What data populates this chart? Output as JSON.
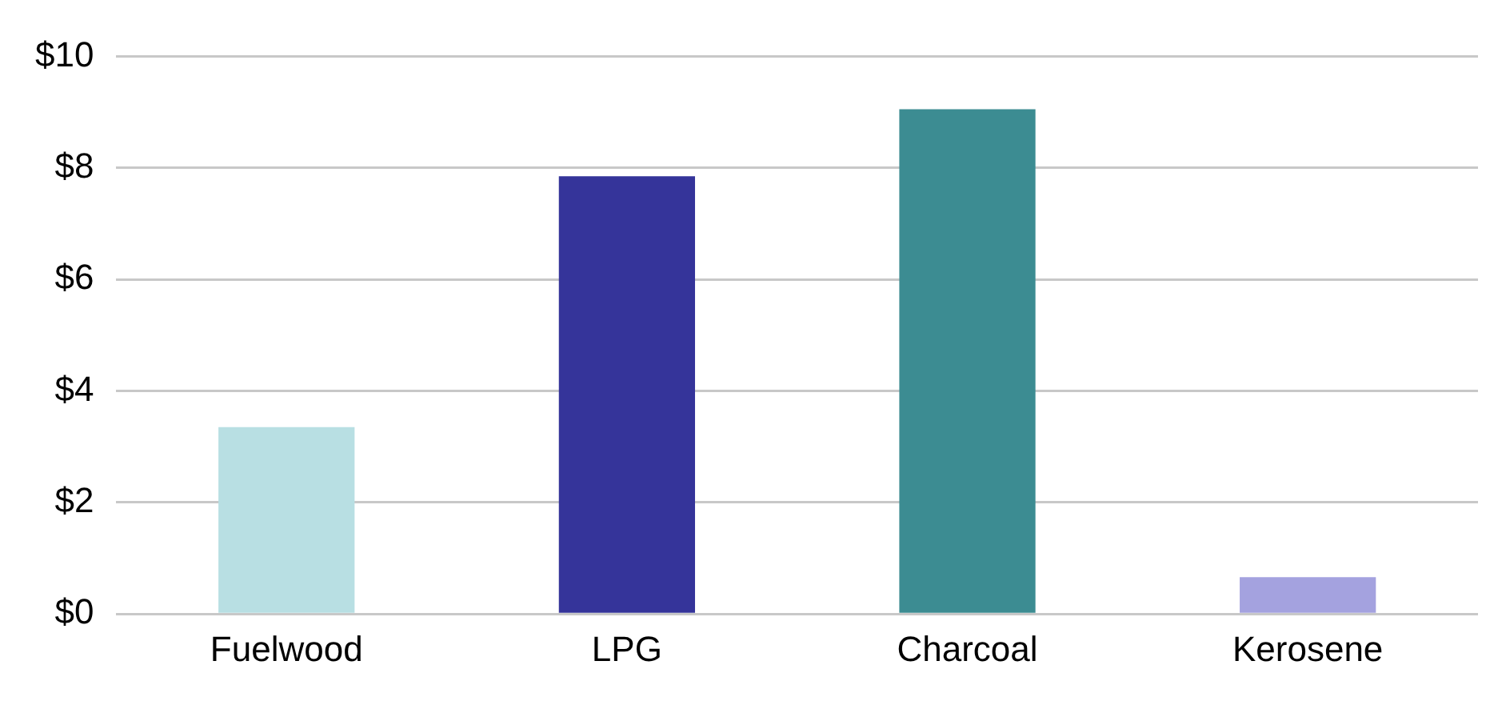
{
  "chart_data": {
    "type": "bar",
    "categories": [
      "Fuelwood",
      "LPG",
      "Charcoal",
      "Kerosene"
    ],
    "values": [
      3.35,
      7.85,
      9.05,
      0.66
    ],
    "colors": [
      "#b8dfe3",
      "#35349a",
      "#3c8c92",
      "#a4a2df"
    ],
    "ylim": [
      0,
      10
    ],
    "yticks": [
      {
        "value": 0,
        "label": "$0"
      },
      {
        "value": 2,
        "label": "$2"
      },
      {
        "value": 4,
        "label": "$4"
      },
      {
        "value": 6,
        "label": "$6"
      },
      {
        "value": 8,
        "label": "$8"
      },
      {
        "value": 10,
        "label": "$10"
      }
    ],
    "grid": "y"
  }
}
